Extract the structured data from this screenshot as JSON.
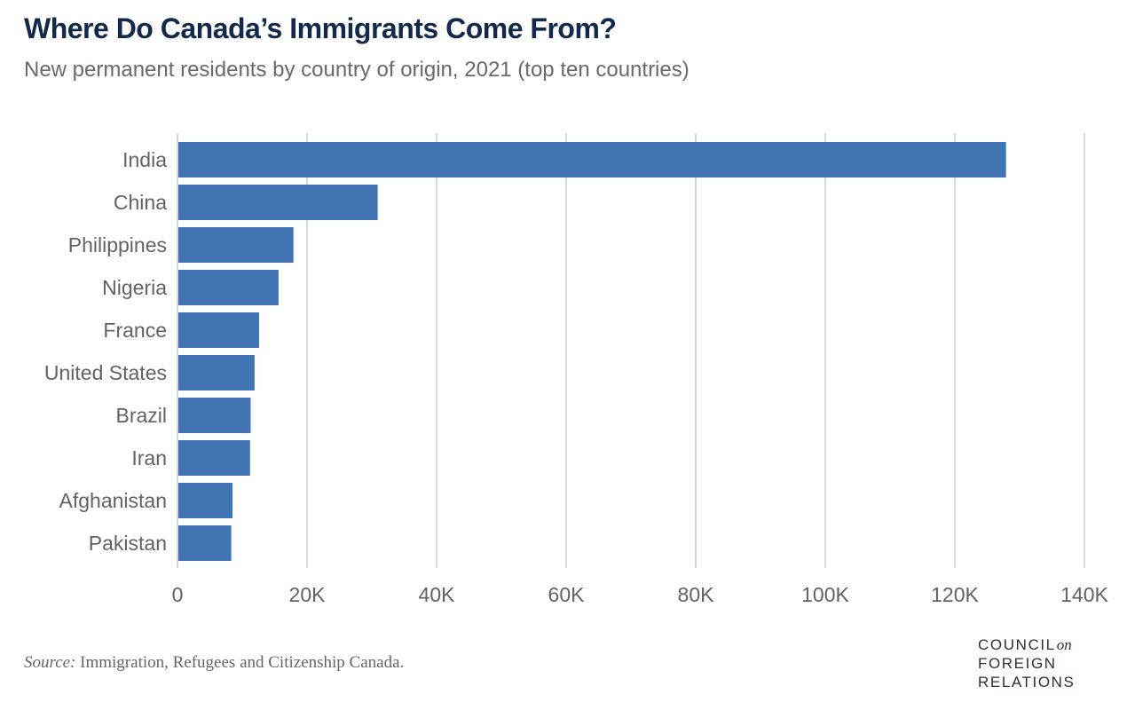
{
  "header": {
    "title": "Where Do Canada’s Immigrants Come From?",
    "subtitle": "New permanent residents by country of origin, 2021 (top ten countries)"
  },
  "footer": {
    "source_label": "Source:",
    "source_text": " Immigration, Refugees and Citizenship Canada.",
    "logo_line1": "COUNCIL",
    "logo_on": "on",
    "logo_line2": "FOREIGN",
    "logo_line3": "RELATIONS"
  },
  "colors": {
    "bar": "#4174b3",
    "grid": "#d9d9d9",
    "title": "#13294b"
  },
  "chart_data": {
    "type": "bar",
    "orientation": "horizontal",
    "title": "Where Do Canada’s Immigrants Come From?",
    "subtitle": "New permanent residents by country of origin, 2021 (top ten countries)",
    "xlabel": "",
    "ylabel": "",
    "categories": [
      "India",
      "China",
      "Philippines",
      "Nigeria",
      "France",
      "United States",
      "Brazil",
      "Iran",
      "Afghanistan",
      "Pakistan"
    ],
    "values": [
      127900,
      30900,
      17900,
      15600,
      12600,
      11900,
      11300,
      11200,
      8500,
      8300
    ],
    "xlim": [
      0,
      140000
    ],
    "xticks": [
      0,
      20000,
      40000,
      60000,
      80000,
      100000,
      120000,
      140000
    ],
    "xtick_labels": [
      "0",
      "20K",
      "40K",
      "60K",
      "80K",
      "100K",
      "120K",
      "140K"
    ],
    "grid": "vertical",
    "legend": "none"
  }
}
